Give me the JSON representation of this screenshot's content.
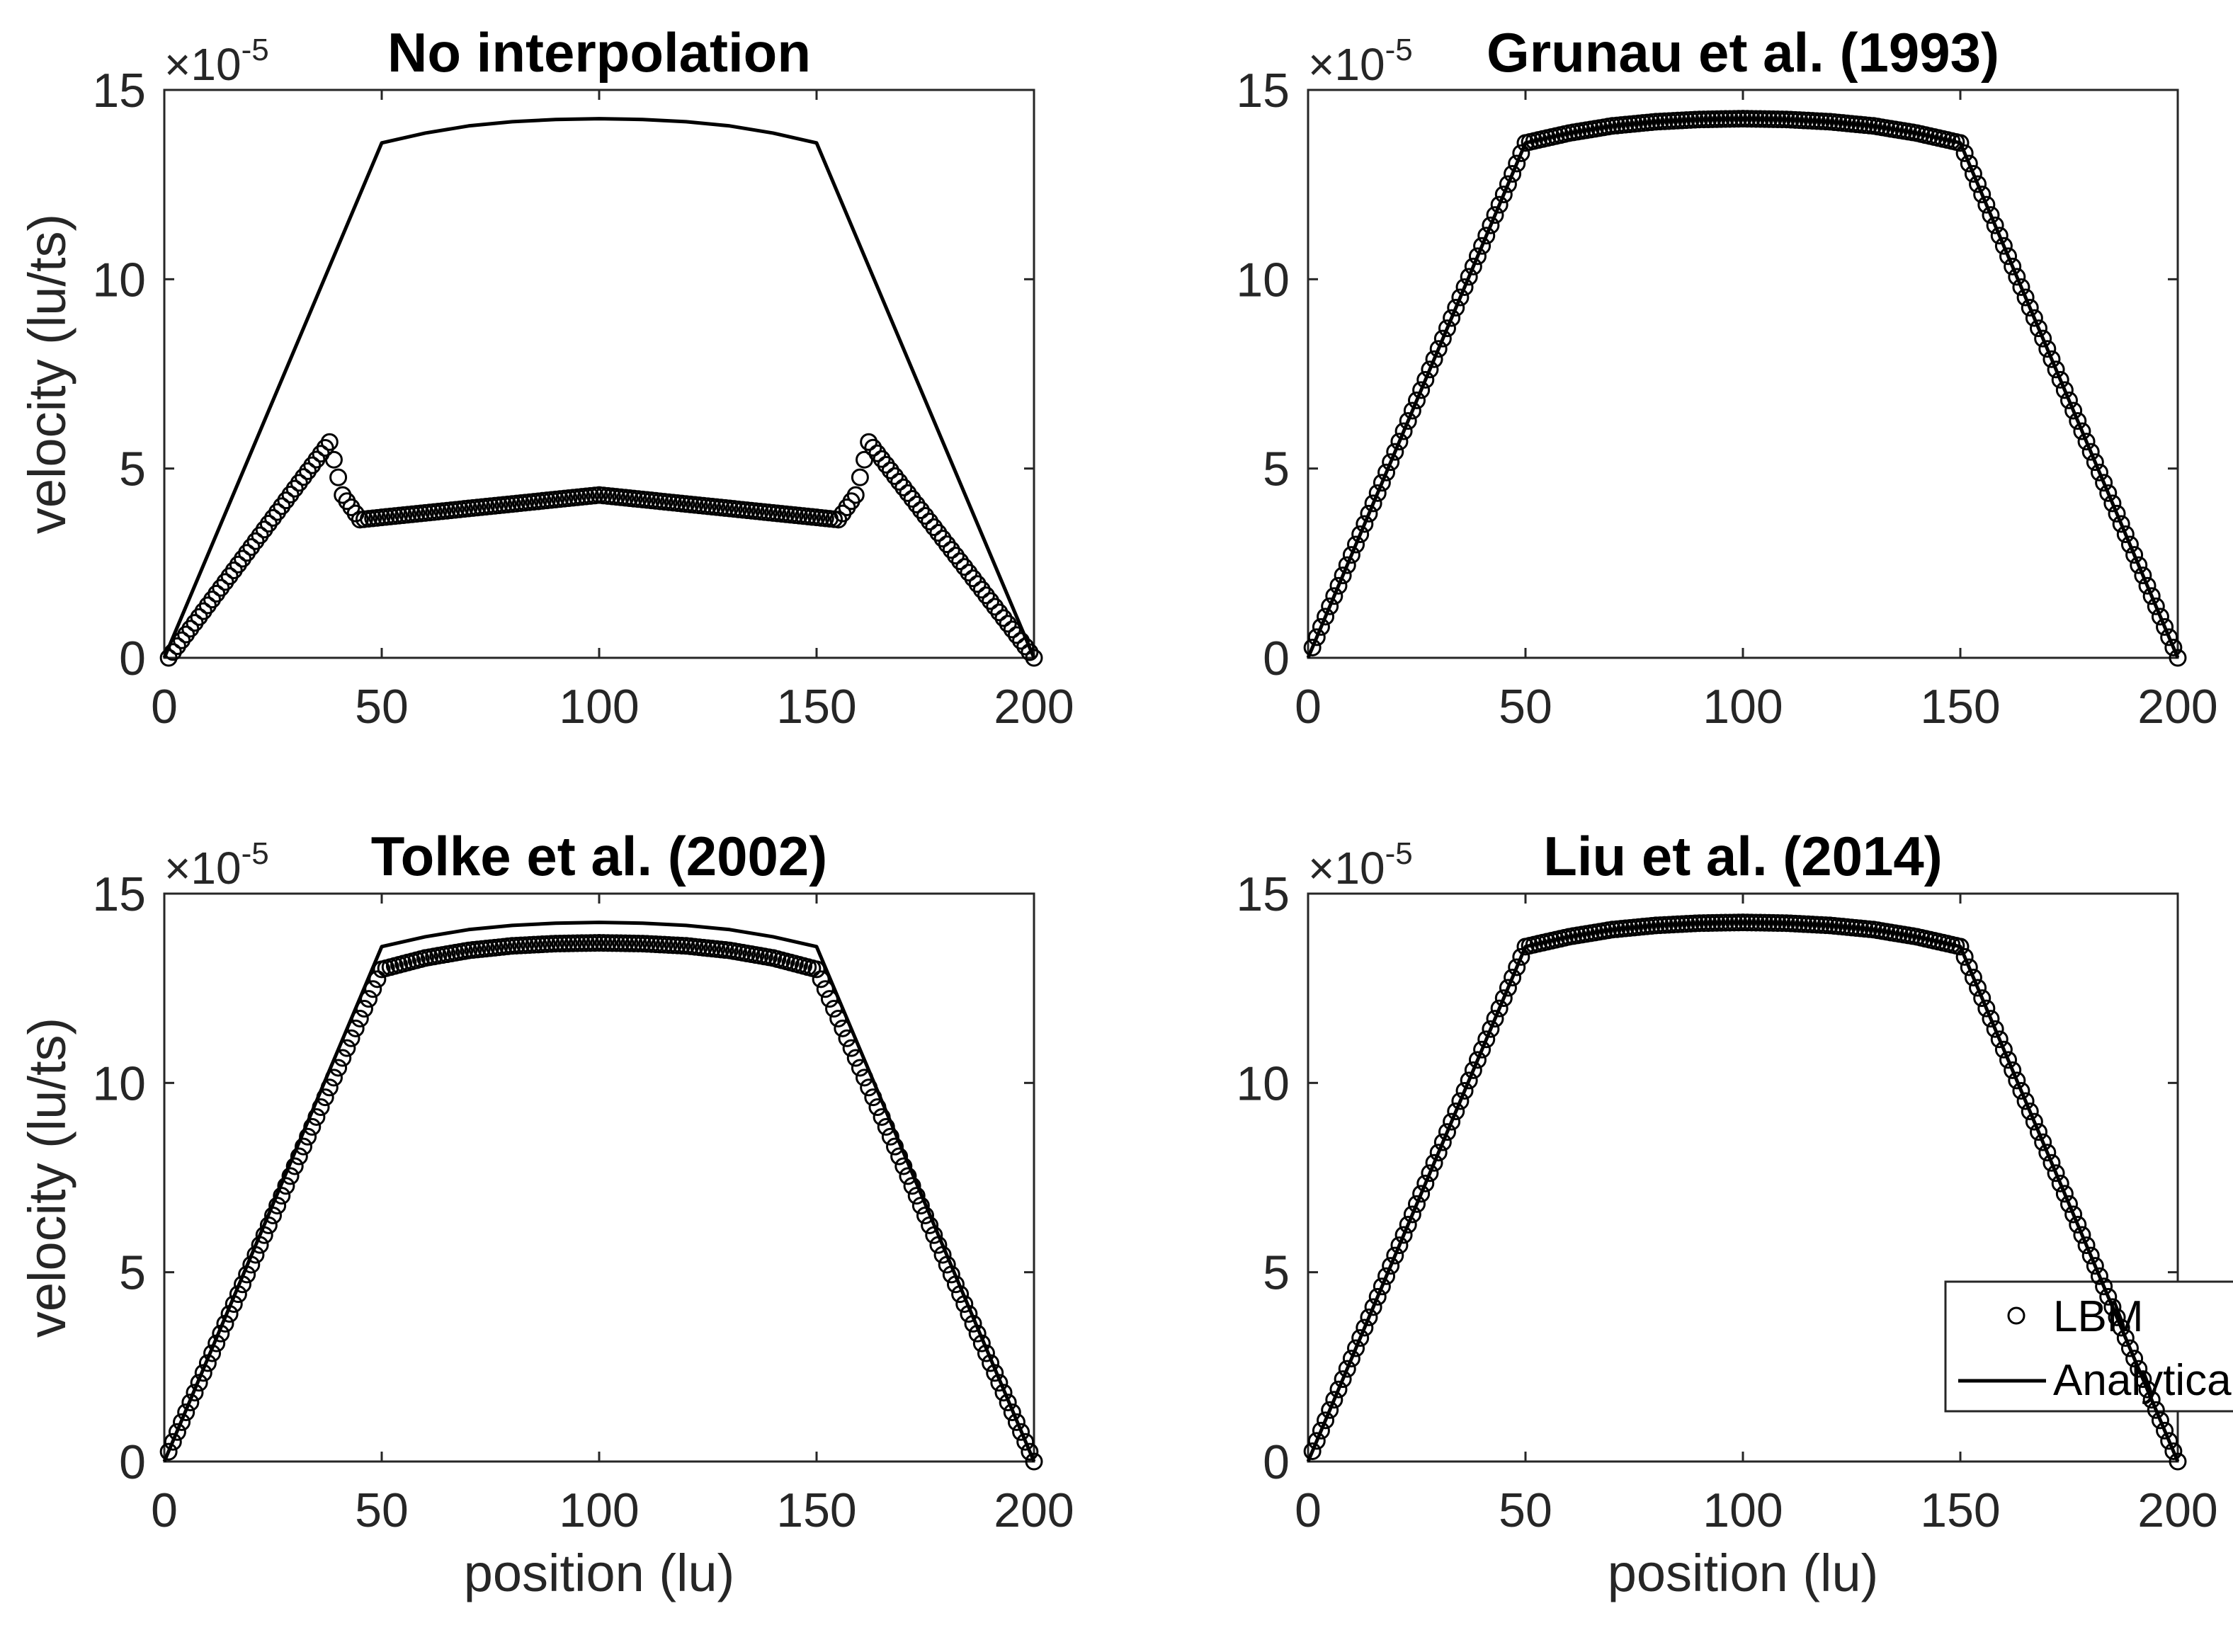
{
  "figure": {
    "x_axis_label": "position (lu)",
    "y_axis_label": "velocity (lu/ts)",
    "y_multiplier_base": "×10",
    "y_multiplier_exponent": "-5"
  },
  "legend": {
    "markers_label": "LBM",
    "line_label": "Analytical solution"
  },
  "colors": {
    "line": "#000000",
    "axis": "#262626",
    "background": "#ffffff"
  },
  "chart_data": [
    {
      "type": "scatter+line",
      "title": "No interpolation",
      "xlabel": "",
      "ylabel": "velocity (lu/ts)",
      "xlim": [
        0,
        200
      ],
      "ylim": [
        0,
        15
      ],
      "y_scale": "×10^-5",
      "xticks": [
        0,
        50,
        100,
        150,
        200
      ],
      "yticks": [
        0,
        5,
        10,
        15
      ],
      "series": [
        {
          "name": "LBM",
          "style": "circles",
          "x": [
            1,
            38,
            41,
            45,
            100,
            155,
            159,
            162,
            200
          ],
          "y": [
            0,
            5.7,
            4.3,
            3.65,
            4.3,
            3.65,
            4.3,
            5.7,
            0
          ]
        },
        {
          "name": "Analytical solution",
          "style": "line",
          "x": [
            0,
            50,
            60,
            70,
            80,
            90,
            100,
            110,
            120,
            130,
            140,
            150,
            200
          ],
          "y": [
            0,
            13.6,
            13.86,
            14.05,
            14.16,
            14.22,
            14.24,
            14.22,
            14.16,
            14.05,
            13.86,
            13.6,
            0
          ]
        }
      ]
    },
    {
      "type": "scatter+line",
      "title": "Grunau et al. (1993)",
      "xlabel": "",
      "ylabel": "",
      "xlim": [
        0,
        200
      ],
      "ylim": [
        0,
        15
      ],
      "y_scale": "×10^-5",
      "xticks": [
        0,
        50,
        100,
        150,
        200
      ],
      "yticks": [
        0,
        5,
        10,
        15
      ],
      "series": [
        {
          "name": "LBM",
          "style": "circles",
          "x": [
            0,
            50,
            60,
            70,
            80,
            90,
            100,
            110,
            120,
            130,
            140,
            150,
            200
          ],
          "y": [
            0,
            13.6,
            13.86,
            14.05,
            14.16,
            14.22,
            14.24,
            14.22,
            14.16,
            14.05,
            13.86,
            13.6,
            0
          ]
        },
        {
          "name": "Analytical solution",
          "style": "line",
          "x": [
            0,
            50,
            60,
            70,
            80,
            90,
            100,
            110,
            120,
            130,
            140,
            150,
            200
          ],
          "y": [
            0,
            13.6,
            13.86,
            14.05,
            14.16,
            14.22,
            14.24,
            14.22,
            14.16,
            14.05,
            13.86,
            13.6,
            0
          ]
        }
      ]
    },
    {
      "type": "scatter+line",
      "title": "Tolke et al. (2002)",
      "xlabel": "position (lu)",
      "ylabel": "velocity (lu/ts)",
      "xlim": [
        0,
        200
      ],
      "ylim": [
        0,
        15
      ],
      "y_scale": "×10^-5",
      "xticks": [
        0,
        50,
        100,
        150,
        200
      ],
      "yticks": [
        0,
        5,
        10,
        15
      ],
      "series": [
        {
          "name": "LBM",
          "style": "circles",
          "x": [
            0,
            50,
            60,
            70,
            80,
            90,
            100,
            110,
            120,
            130,
            140,
            150,
            200
          ],
          "y": [
            0,
            13.0,
            13.3,
            13.5,
            13.62,
            13.68,
            13.7,
            13.68,
            13.62,
            13.5,
            13.3,
            13.0,
            0
          ]
        },
        {
          "name": "Analytical solution",
          "style": "line",
          "x": [
            0,
            50,
            60,
            70,
            80,
            90,
            100,
            110,
            120,
            130,
            140,
            150,
            200
          ],
          "y": [
            0,
            13.6,
            13.86,
            14.05,
            14.16,
            14.22,
            14.24,
            14.22,
            14.16,
            14.05,
            13.86,
            13.6,
            0
          ]
        }
      ]
    },
    {
      "type": "scatter+line",
      "title": "Liu et al. (2014)",
      "xlabel": "position (lu)",
      "ylabel": "",
      "xlim": [
        0,
        200
      ],
      "ylim": [
        0,
        15
      ],
      "y_scale": "×10^-5",
      "xticks": [
        0,
        50,
        100,
        150,
        200
      ],
      "yticks": [
        0,
        5,
        10,
        15
      ],
      "legend_location": "bottom-right",
      "series": [
        {
          "name": "LBM",
          "style": "circles",
          "x": [
            0,
            50,
            60,
            70,
            80,
            90,
            100,
            110,
            120,
            130,
            140,
            150,
            200
          ],
          "y": [
            0,
            13.6,
            13.86,
            14.05,
            14.16,
            14.22,
            14.24,
            14.22,
            14.16,
            14.05,
            13.86,
            13.6,
            0
          ]
        },
        {
          "name": "Analytical solution",
          "style": "line",
          "x": [
            0,
            50,
            60,
            70,
            80,
            90,
            100,
            110,
            120,
            130,
            140,
            150,
            200
          ],
          "y": [
            0,
            13.6,
            13.86,
            14.05,
            14.16,
            14.22,
            14.24,
            14.22,
            14.16,
            14.05,
            13.86,
            13.6,
            0
          ]
        }
      ]
    }
  ]
}
